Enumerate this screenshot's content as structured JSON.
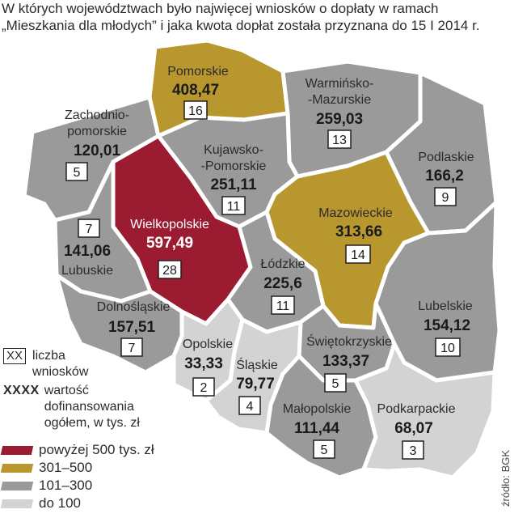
{
  "header": {
    "line1": "W których województwach było najwięcej wniosków o dopłaty w ramach",
    "line2": "„Mieszkania dla młodych” i jaka kwota dopłat została przyznana do 15 I 2014 r."
  },
  "regions": [
    {
      "name": "Pomorskie",
      "value": "408,47",
      "count": "16",
      "category": "301–500",
      "color": "#b8972e"
    },
    {
      "name_lines": [
        "Warmińsko-",
        "-Mazurskie"
      ],
      "value": "259,03",
      "count": "13",
      "category": "101–300",
      "color": "#9a9a9a"
    },
    {
      "name_lines": [
        "Zachodnio-",
        "pomorskie"
      ],
      "value": "120,01",
      "count": "5",
      "category": "101–300",
      "color": "#9a9a9a"
    },
    {
      "name_lines": [
        "Kujawsko-",
        "-Pomorskie"
      ],
      "value": "251,11",
      "count": "11",
      "category": "101–300",
      "color": "#9a9a9a"
    },
    {
      "name": "Podlaskie",
      "value": "166,2",
      "count": "9",
      "category": "101–300",
      "color": "#9a9a9a"
    },
    {
      "name": "Wielkopolskie",
      "value": "597,49",
      "count": "28",
      "category": "powyżej 500 tys. zł",
      "color": "#9b1b30"
    },
    {
      "name": "Mazowieckie",
      "value": "313,66",
      "count": "14",
      "category": "301–500",
      "color": "#b8972e"
    },
    {
      "name": "Lubuskie",
      "value": "141,06",
      "count": "7",
      "category": "101–300",
      "color": "#9a9a9a"
    },
    {
      "name": "Łódzkie",
      "value": "225,6",
      "count": "11",
      "category": "101–300",
      "color": "#9a9a9a"
    },
    {
      "name": "Lubelskie",
      "value": "154,12",
      "count": "10",
      "category": "101–300",
      "color": "#9a9a9a"
    },
    {
      "name": "Dolnośląskie",
      "value": "157,51",
      "count": "7",
      "category": "101–300",
      "color": "#9a9a9a"
    },
    {
      "name": "Opolskie",
      "value": "33,33",
      "count": "2",
      "category": "do 100",
      "color": "#d3d3d3"
    },
    {
      "name": "Świętokrzyskie",
      "value": "133,37",
      "count": "5",
      "category": "101–300",
      "color": "#9a9a9a"
    },
    {
      "name": "Śląskie",
      "value": "79,77",
      "count": "4",
      "category": "do 100",
      "color": "#d3d3d3"
    },
    {
      "name": "Małopolskie",
      "value": "111,44",
      "count": "5",
      "category": "101–300",
      "color": "#9a9a9a"
    },
    {
      "name": "Podkarpackie",
      "value": "68,07",
      "count": "3",
      "category": "do 100",
      "color": "#d3d3d3"
    }
  ],
  "legend": {
    "count_key": "XX",
    "count_label_lines": [
      "liczba",
      "wniosków"
    ],
    "value_key": "XXXX",
    "value_label_lines": [
      "wartość",
      "dofinansowania",
      "ogółem, w tys. zł"
    ]
  },
  "scale": [
    {
      "label": "powyżej 500 tys. zł",
      "color": "#9b1b30"
    },
    {
      "label": "301–500",
      "color": "#b8972e"
    },
    {
      "label": "101–300",
      "color": "#9a9a9a"
    },
    {
      "label": "do 100",
      "color": "#d3d3d3"
    }
  ],
  "source": "źródło: BGK"
}
